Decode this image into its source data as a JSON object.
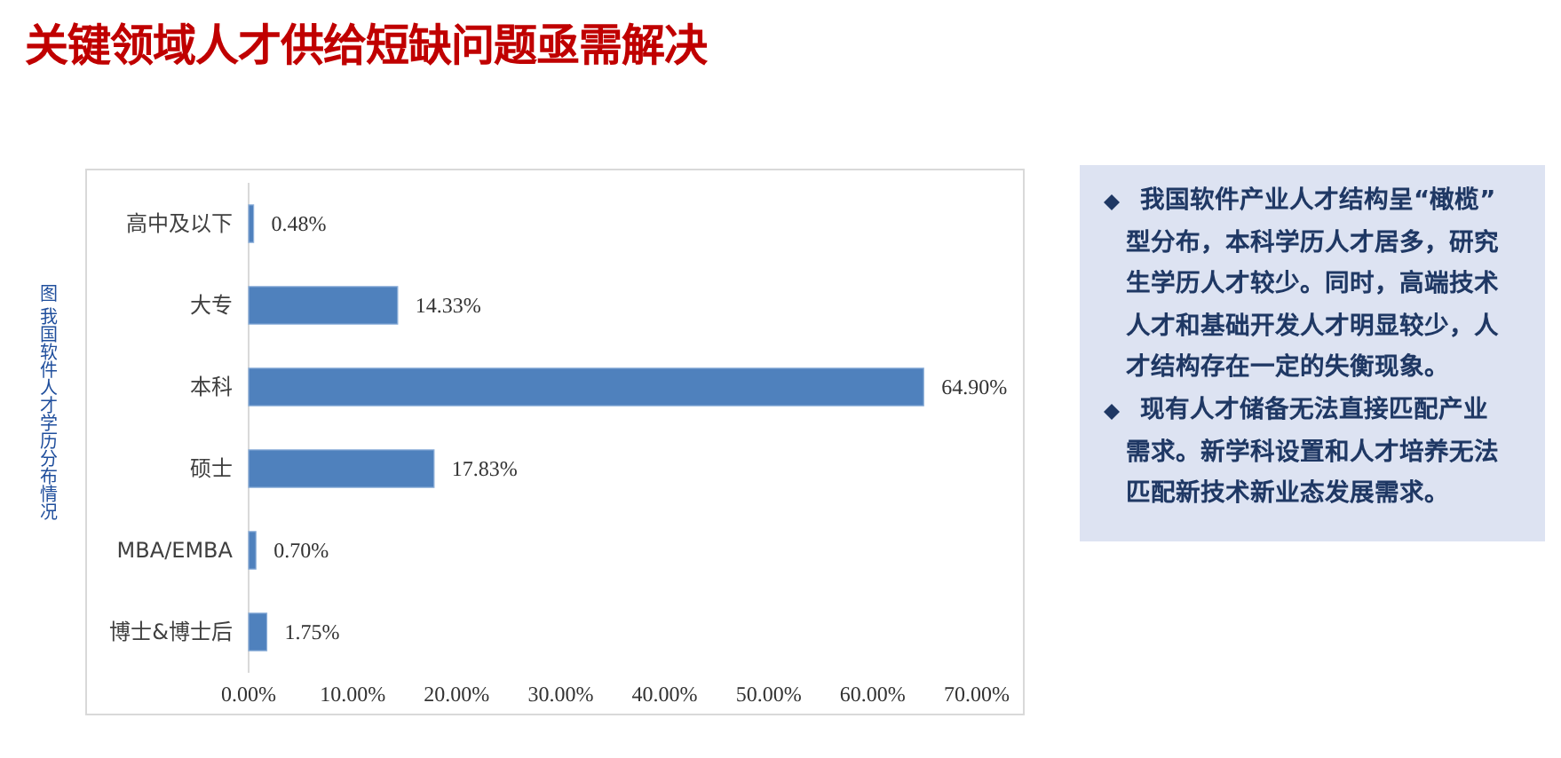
{
  "chart_data": [
    {
      "type": "bar",
      "orientation": "horizontal",
      "title": "关键领域人才供给短缺问题亟需解决",
      "annotations": [
        "图 我国软件人才学历分布情况"
      ],
      "categories": [
        "高中及以下",
        "大专",
        "本科",
        "硕士",
        "MBA/EMBA",
        "博士&博士后"
      ],
      "values": [
        0.48,
        14.33,
        64.9,
        17.83,
        0.7,
        1.75
      ],
      "value_labels": [
        "0.48%",
        "14.33%",
        "64.90%",
        "17.83%",
        "0.70%",
        "1.75%"
      ],
      "color": "#4f81bd",
      "xlim": [
        0,
        70
      ],
      "xticks": [
        {
          "value": 0,
          "label": "0.00%"
        },
        {
          "value": 10,
          "label": "10.00%"
        },
        {
          "value": 20,
          "label": "20.00%"
        },
        {
          "value": 30,
          "label": "30.00%"
        },
        {
          "value": 40,
          "label": "40.00%"
        },
        {
          "value": 50,
          "label": "50.00%"
        },
        {
          "value": 60,
          "label": "60.00%"
        },
        {
          "value": 70,
          "label": "70.00%"
        }
      ]
    },
    {
      "type": "other",
      "annotations": [
        "我国软件产业人才结构呈“橄榄”型分布，本科学历人才居多，研究生学历人才较少。同时，高端技术人才和基础开发人才明显较少，人才结构存在一定的失衡现象。",
        "现有人才储备无法直接匹配产业需求。新学科设置和人才培养无法匹配新技术新业态发展需求。"
      ]
    }
  ]
}
